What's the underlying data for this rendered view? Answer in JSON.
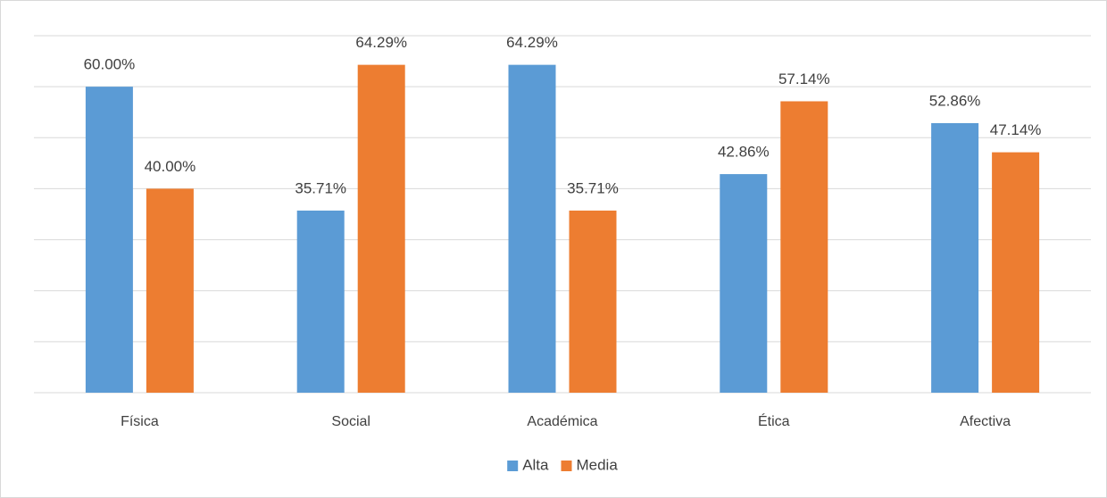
{
  "chart_data": {
    "type": "bar",
    "categories": [
      "Física",
      "Social",
      "Académica",
      "Ética",
      "Afectiva"
    ],
    "series": [
      {
        "name": "Alta",
        "color": "#5b9bd5",
        "values": [
          60,
          35.71,
          64.29,
          42.86,
          52.86
        ],
        "value_labels": [
          "60.00%",
          "35.71%",
          "64.29%",
          "42.86%",
          "52.86%"
        ]
      },
      {
        "name": "Media",
        "color": "#ed7d31",
        "values": [
          40,
          64.29,
          35.71,
          57.14,
          47.14
        ],
        "value_labels": [
          "40.00%",
          "64.29%",
          "35.71%",
          "57.14%",
          "47.14%"
        ]
      }
    ],
    "ylim": [
      0,
      70
    ],
    "yticks": [
      0,
      10,
      20,
      30,
      40,
      50,
      60,
      70
    ],
    "grid": true,
    "legend": "bottom"
  }
}
